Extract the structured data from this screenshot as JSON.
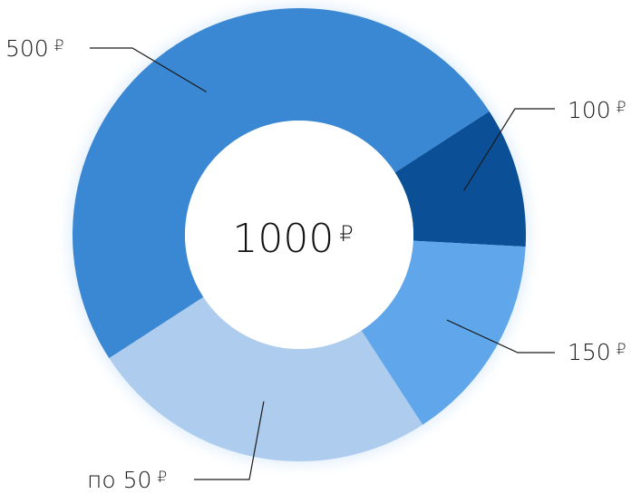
{
  "chart_data": {
    "type": "donut",
    "center_label": {
      "value": "1000",
      "currency": "₽"
    },
    "slices": [
      {
        "label": "100",
        "currency": "₽",
        "value": 100,
        "color": "#0b4f96"
      },
      {
        "label": "150",
        "currency": "₽",
        "value": 150,
        "color": "#5fa6ea"
      },
      {
        "label": "по 50",
        "currency": "₽",
        "value": 250,
        "color": "#aecdee"
      },
      {
        "label": "500",
        "currency": "₽",
        "value": 500,
        "color": "#3a87d3"
      }
    ]
  }
}
